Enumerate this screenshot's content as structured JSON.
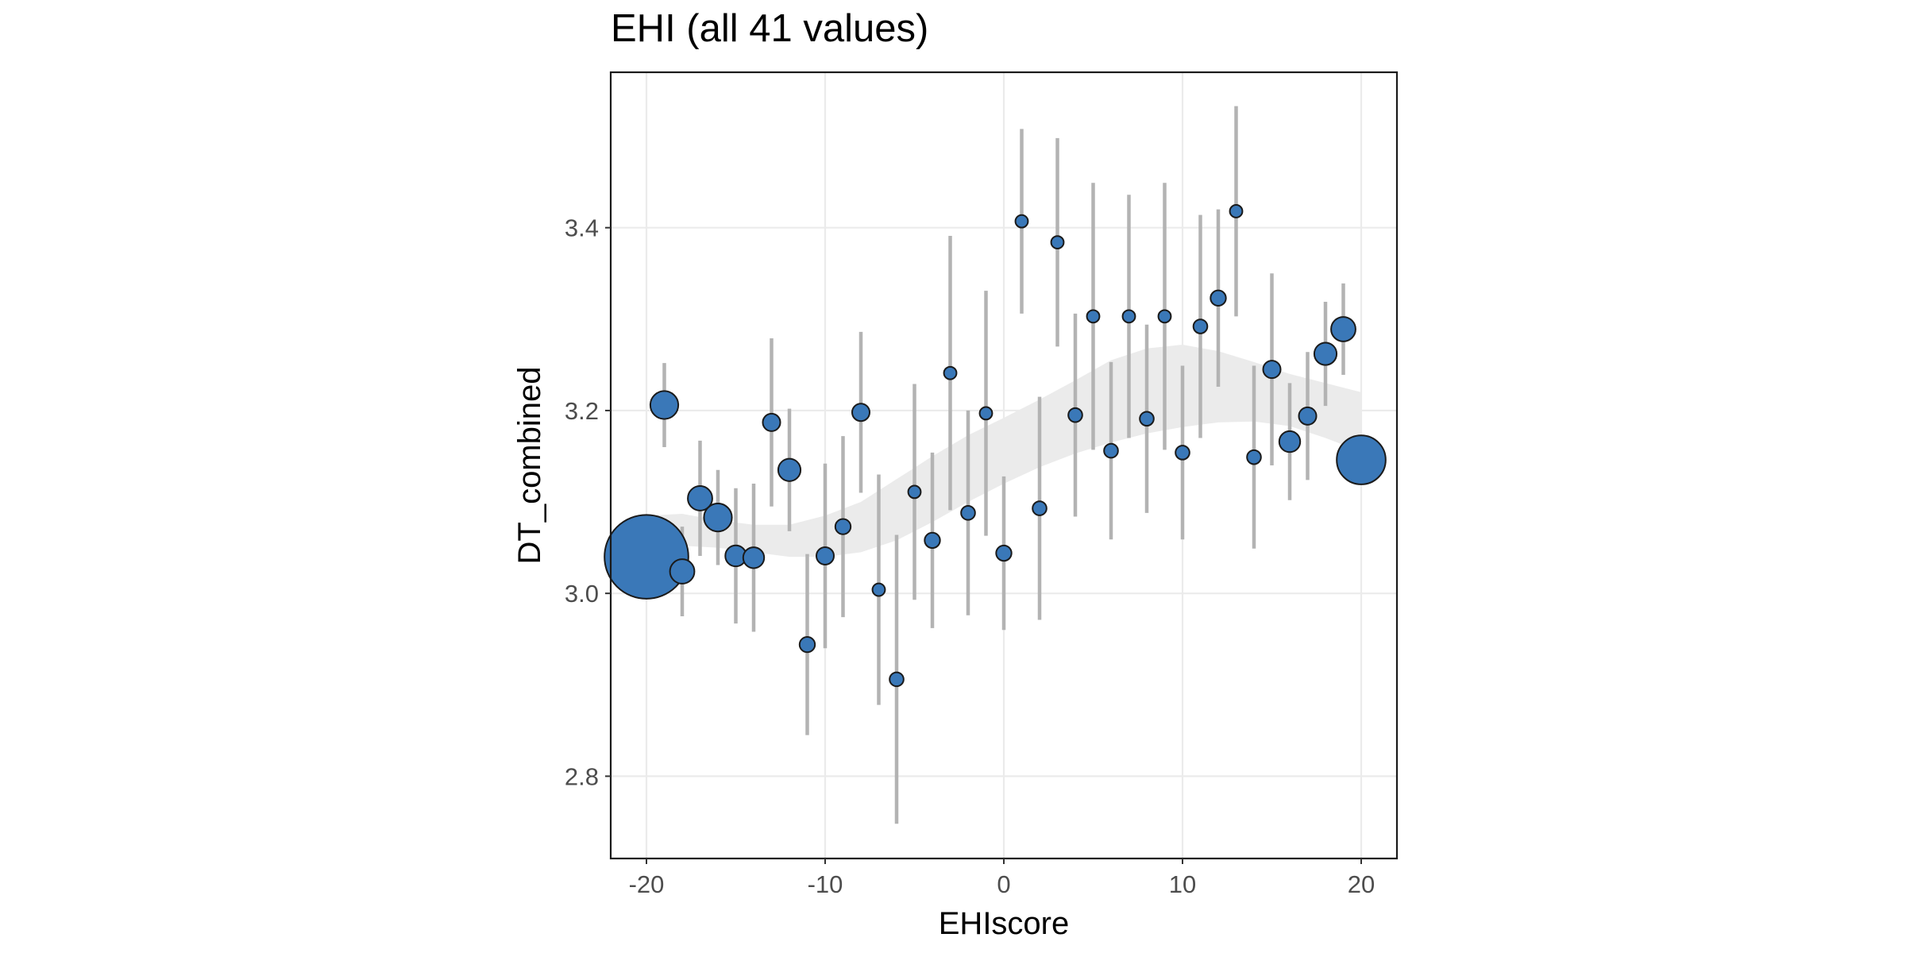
{
  "chart_data": {
    "type": "scatter",
    "title": "EHI (all 41 values)",
    "xlabel": "EHIscore",
    "ylabel": "DT_combined",
    "xlim": [
      -22,
      22
    ],
    "ylim": [
      2.71,
      3.57
    ],
    "x_ticks": [
      -20,
      -10,
      0,
      10,
      20
    ],
    "x_tick_labels": [
      "-20",
      "-10",
      "0",
      "10",
      "20"
    ],
    "y_ticks": [
      2.8,
      3.0,
      3.2,
      3.4
    ],
    "y_tick_labels": [
      "2.8",
      "3.0",
      "3.2",
      "3.4"
    ],
    "grid": true,
    "legend": "none",
    "point_color": "#3A78B8",
    "point_edge_color": "#1A1A1A",
    "errorbar_color": "#B3B3B3",
    "ribbon_color": "#EBEBEB",
    "points": [
      {
        "x": -20,
        "y": 3.04,
        "lo": 3.04,
        "hi": 3.04,
        "size": 12
      },
      {
        "x": -19,
        "y": 3.206,
        "lo": 3.16,
        "hi": 3.252,
        "size": 4
      },
      {
        "x": -18,
        "y": 3.024,
        "lo": 2.975,
        "hi": 3.073,
        "size": 3.5
      },
      {
        "x": -17,
        "y": 3.104,
        "lo": 3.041,
        "hi": 3.167,
        "size": 3.5
      },
      {
        "x": -16,
        "y": 3.083,
        "lo": 3.031,
        "hi": 3.135,
        "size": 4
      },
      {
        "x": -15,
        "y": 3.041,
        "lo": 2.967,
        "hi": 3.115,
        "size": 3
      },
      {
        "x": -14,
        "y": 3.039,
        "lo": 2.958,
        "hi": 3.12,
        "size": 3
      },
      {
        "x": -13,
        "y": 3.187,
        "lo": 3.095,
        "hi": 3.279,
        "size": 2.5
      },
      {
        "x": -12,
        "y": 3.135,
        "lo": 3.068,
        "hi": 3.202,
        "size": 3.2
      },
      {
        "x": -11,
        "y": 2.944,
        "lo": 2.845,
        "hi": 3.043,
        "size": 2.2
      },
      {
        "x": -10,
        "y": 3.041,
        "lo": 2.94,
        "hi": 3.142,
        "size": 2.5
      },
      {
        "x": -9,
        "y": 3.073,
        "lo": 2.974,
        "hi": 3.172,
        "size": 2.2
      },
      {
        "x": -8,
        "y": 3.198,
        "lo": 3.11,
        "hi": 3.286,
        "size": 2.5
      },
      {
        "x": -7,
        "y": 3.004,
        "lo": 2.878,
        "hi": 3.13,
        "size": 1.8
      },
      {
        "x": -6,
        "y": 2.906,
        "lo": 2.748,
        "hi": 3.064,
        "size": 2
      },
      {
        "x": -5,
        "y": 3.111,
        "lo": 2.993,
        "hi": 3.229,
        "size": 1.8
      },
      {
        "x": -4,
        "y": 3.058,
        "lo": 2.962,
        "hi": 3.154,
        "size": 2.2
      },
      {
        "x": -3,
        "y": 3.241,
        "lo": 3.091,
        "hi": 3.391,
        "size": 1.8
      },
      {
        "x": -2,
        "y": 3.088,
        "lo": 2.976,
        "hi": 3.2,
        "size": 2
      },
      {
        "x": -1,
        "y": 3.197,
        "lo": 3.063,
        "hi": 3.331,
        "size": 1.8
      },
      {
        "x": 0,
        "y": 3.044,
        "lo": 2.96,
        "hi": 3.128,
        "size": 2.2
      },
      {
        "x": 1,
        "y": 3.407,
        "lo": 3.306,
        "hi": 3.508,
        "size": 1.8
      },
      {
        "x": 2,
        "y": 3.093,
        "lo": 2.971,
        "hi": 3.215,
        "size": 2
      },
      {
        "x": 3,
        "y": 3.384,
        "lo": 3.27,
        "hi": 3.498,
        "size": 1.8
      },
      {
        "x": 4,
        "y": 3.195,
        "lo": 3.084,
        "hi": 3.306,
        "size": 2
      },
      {
        "x": 5,
        "y": 3.303,
        "lo": 3.157,
        "hi": 3.449,
        "size": 1.8
      },
      {
        "x": 6,
        "y": 3.156,
        "lo": 3.059,
        "hi": 3.253,
        "size": 2
      },
      {
        "x": 7,
        "y": 3.303,
        "lo": 3.17,
        "hi": 3.436,
        "size": 1.8
      },
      {
        "x": 8,
        "y": 3.191,
        "lo": 3.088,
        "hi": 3.294,
        "size": 2
      },
      {
        "x": 9,
        "y": 3.303,
        "lo": 3.157,
        "hi": 3.449,
        "size": 1.8
      },
      {
        "x": 10,
        "y": 3.154,
        "lo": 3.059,
        "hi": 3.249,
        "size": 2
      },
      {
        "x": 11,
        "y": 3.292,
        "lo": 3.17,
        "hi": 3.414,
        "size": 2
      },
      {
        "x": 12,
        "y": 3.323,
        "lo": 3.226,
        "hi": 3.42,
        "size": 2.2
      },
      {
        "x": 13,
        "y": 3.418,
        "lo": 3.303,
        "hi": 3.533,
        "size": 1.8
      },
      {
        "x": 14,
        "y": 3.149,
        "lo": 3.049,
        "hi": 3.249,
        "size": 2
      },
      {
        "x": 15,
        "y": 3.245,
        "lo": 3.14,
        "hi": 3.35,
        "size": 2.5
      },
      {
        "x": 16,
        "y": 3.166,
        "lo": 3.102,
        "hi": 3.23,
        "size": 3
      },
      {
        "x": 17,
        "y": 3.194,
        "lo": 3.124,
        "hi": 3.264,
        "size": 2.5
      },
      {
        "x": 18,
        "y": 3.262,
        "lo": 3.205,
        "hi": 3.319,
        "size": 3.2
      },
      {
        "x": 19,
        "y": 3.289,
        "lo": 3.239,
        "hi": 3.339,
        "size": 3.5
      },
      {
        "x": 20,
        "y": 3.146,
        "lo": 3.121,
        "hi": 3.171,
        "size": 7
      }
    ],
    "smooth_ribbon": [
      {
        "x": -20,
        "lo": 3.045,
        "hi": 3.085
      },
      {
        "x": -18,
        "lo": 3.052,
        "hi": 3.087
      },
      {
        "x": -16,
        "lo": 3.05,
        "hi": 3.08
      },
      {
        "x": -14,
        "lo": 3.045,
        "hi": 3.075
      },
      {
        "x": -12,
        "lo": 3.04,
        "hi": 3.075
      },
      {
        "x": -10,
        "lo": 3.04,
        "hi": 3.085
      },
      {
        "x": -8,
        "lo": 3.045,
        "hi": 3.1
      },
      {
        "x": -6,
        "lo": 3.058,
        "hi": 3.125
      },
      {
        "x": -4,
        "lo": 3.078,
        "hi": 3.15
      },
      {
        "x": -2,
        "lo": 3.1,
        "hi": 3.173
      },
      {
        "x": 0,
        "lo": 3.12,
        "hi": 3.192
      },
      {
        "x": 2,
        "lo": 3.138,
        "hi": 3.212
      },
      {
        "x": 4,
        "lo": 3.153,
        "hi": 3.233
      },
      {
        "x": 6,
        "lo": 3.165,
        "hi": 3.255
      },
      {
        "x": 8,
        "lo": 3.175,
        "hi": 3.268
      },
      {
        "x": 10,
        "lo": 3.182,
        "hi": 3.272
      },
      {
        "x": 12,
        "lo": 3.187,
        "hi": 3.265
      },
      {
        "x": 14,
        "lo": 3.188,
        "hi": 3.253
      },
      {
        "x": 16,
        "lo": 3.183,
        "hi": 3.24
      },
      {
        "x": 18,
        "lo": 3.17,
        "hi": 3.23
      },
      {
        "x": 20,
        "lo": 3.155,
        "hi": 3.22
      }
    ]
  }
}
